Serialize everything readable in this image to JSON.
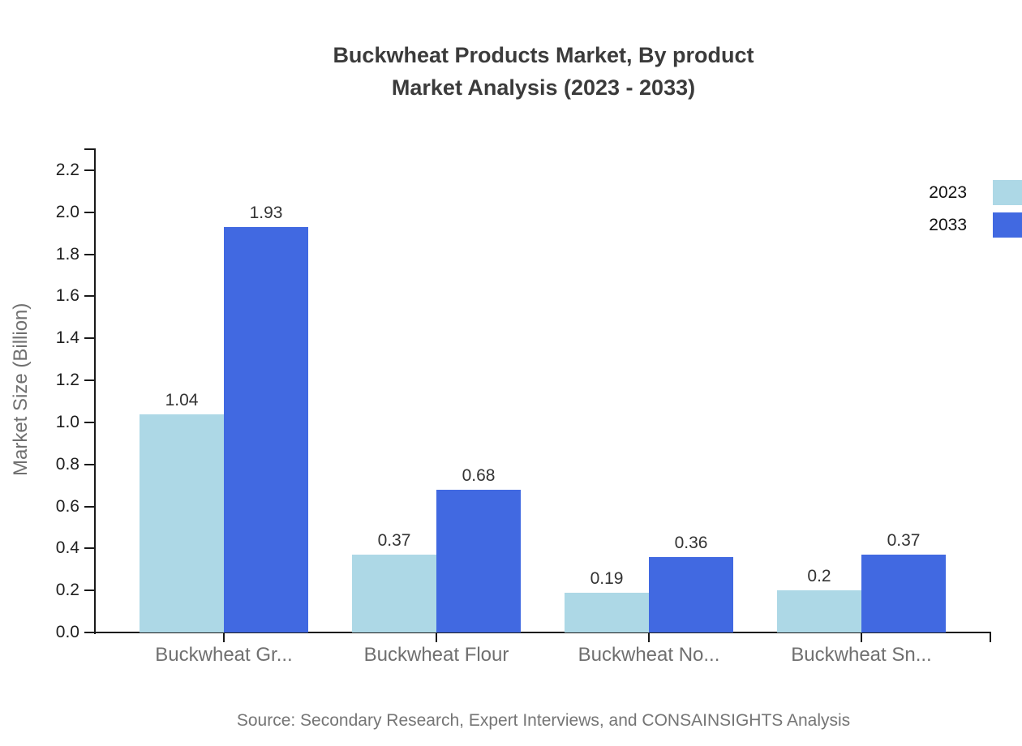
{
  "title": {
    "line1": "Buckwheat Products Market, By product",
    "line2": "Market Analysis (2023 - 2033)"
  },
  "chart_data": {
    "type": "bar",
    "categories": [
      "Buckwheat Gr...",
      "Buckwheat Flour",
      "Buckwheat No...",
      "Buckwheat Sn..."
    ],
    "series": [
      {
        "name": "2023",
        "color": "#ADD8E6",
        "values": [
          1.04,
          0.37,
          0.19,
          0.2
        ]
      },
      {
        "name": "2033",
        "color": "#4169E1",
        "values": [
          1.93,
          0.68,
          0.36,
          0.37
        ]
      }
    ],
    "xlabel": "",
    "ylabel": "Market Size (Billion)",
    "ylim": [
      0,
      2.2
    ],
    "yticks": [
      "0.0",
      "0.2",
      "0.4",
      "0.6",
      "0.8",
      "1.0",
      "1.2",
      "1.4",
      "1.6",
      "1.8",
      "2.0",
      "2.2"
    ],
    "grid": false,
    "legend_position": "top-right",
    "value_labels_shown": true
  },
  "source": "Source: Secondary Research, Expert Interviews, and CONSAINSIGHTS Analysis",
  "colors": {
    "series_2023": "#ADD8E6",
    "series_2033": "#4169E1",
    "axis": "#1a1a1a",
    "title_text": "#3b3b3b",
    "muted_text": "#707070",
    "value_text": "#333333"
  }
}
